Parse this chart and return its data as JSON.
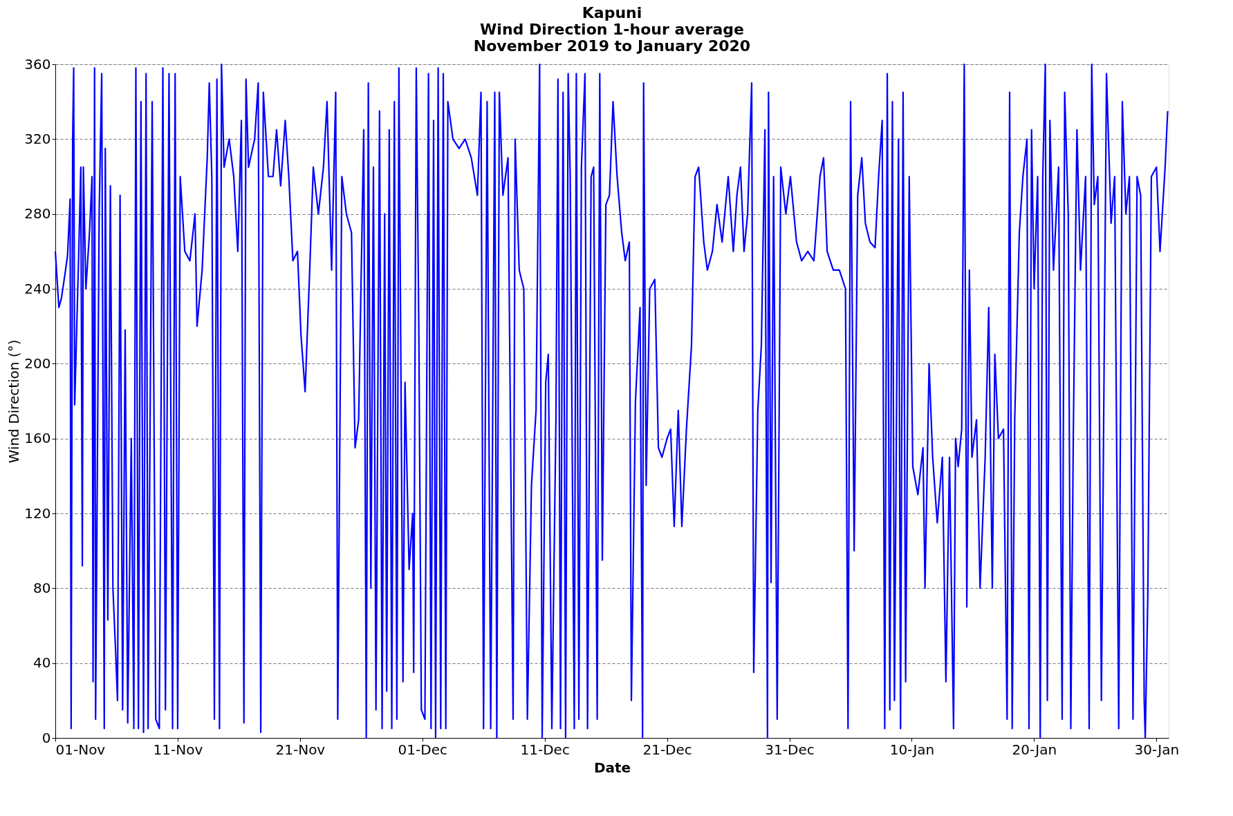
{
  "chart_data": {
    "type": "line",
    "title": "Kapuni",
    "subtitle": "Wind Direction 1-hour average\nNovember 2019 to January 2020",
    "xlabel": "Date",
    "ylabel": "Wind Direction  (°)",
    "xlim": [
      "2019-11-01T00:00",
      "2020-01-31T00:00"
    ],
    "xticks": [
      {
        "value": "2019-11-01",
        "label": "01-Nov"
      },
      {
        "value": "2019-11-11",
        "label": "11-Nov"
      },
      {
        "value": "2019-11-21",
        "label": "21-Nov"
      },
      {
        "value": "2019-12-01",
        "label": "01-Dec"
      },
      {
        "value": "2019-12-11",
        "label": "11-Dec"
      },
      {
        "value": "2019-12-21",
        "label": "21-Dec"
      },
      {
        "value": "2019-12-31",
        "label": "31-Dec"
      },
      {
        "value": "2020-01-10",
        "label": "10-Jan"
      },
      {
        "value": "2020-01-20",
        "label": "20-Jan"
      },
      {
        "value": "2020-01-30",
        "label": "30-Jan"
      }
    ],
    "ylim": [
      0,
      360
    ],
    "yticks": [
      0,
      40,
      80,
      120,
      160,
      200,
      240,
      280,
      320,
      360
    ],
    "grid": "y",
    "marker": "none",
    "line_style": "solid",
    "series": [
      {
        "color": "#0000ff",
        "x": [
          "2019-11-01T00:00",
          "2019-11-01T07:00",
          "2019-11-01T12:00",
          "2019-11-01T19:00",
          "2019-11-02T00:00",
          "2019-11-02T05:00",
          "2019-11-02T07:00",
          "2019-11-02T10:00",
          "2019-11-02T12:00",
          "2019-11-02T14:00",
          "2019-11-02T22:00",
          "2019-11-03T02:00",
          "2019-11-03T05:00",
          "2019-11-03T07:00",
          "2019-11-03T12:00",
          "2019-11-03T19:00",
          "2019-11-04T00:00",
          "2019-11-04T02:00",
          "2019-11-04T05:00",
          "2019-11-04T07:00",
          "2019-11-04T14:00",
          "2019-11-04T19:00",
          "2019-11-05T00:00",
          "2019-11-05T02:00",
          "2019-11-05T07:00",
          "2019-11-05T12:00",
          "2019-11-05T17:00",
          "2019-11-05T22:00",
          "2019-11-06T02:00",
          "2019-11-06T07:00",
          "2019-11-06T12:00",
          "2019-11-06T17:00",
          "2019-11-06T22:00",
          "2019-11-07T05:00",
          "2019-11-07T10:00",
          "2019-11-07T14:00",
          "2019-11-07T19:00",
          "2019-11-08T00:00",
          "2019-11-08T05:00",
          "2019-11-08T10:00",
          "2019-11-08T14:00",
          "2019-11-08T22:00",
          "2019-11-09T05:00",
          "2019-11-09T12:00",
          "2019-11-09T19:00",
          "2019-11-10T00:00",
          "2019-11-10T07:00",
          "2019-11-10T14:00",
          "2019-11-10T19:00",
          "2019-11-11T00:00",
          "2019-11-11T05:00",
          "2019-11-11T14:00",
          "2019-11-12T00:00",
          "2019-11-12T10:00",
          "2019-11-12T14:00",
          "2019-11-13T00:00",
          "2019-11-13T10:00",
          "2019-11-13T14:00",
          "2019-11-13T19:00",
          "2019-11-14T00:00",
          "2019-11-14T05:00",
          "2019-11-14T10:00",
          "2019-11-14T14:00",
          "2019-11-14T19:00",
          "2019-11-15T05:00",
          "2019-11-15T14:00",
          "2019-11-15T22:00",
          "2019-11-16T05:00",
          "2019-11-16T10:00",
          "2019-11-16T14:00",
          "2019-11-16T19:00",
          "2019-11-17T07:00",
          "2019-11-17T14:00",
          "2019-11-17T19:00",
          "2019-11-18T00:00",
          "2019-11-18T10:00",
          "2019-11-18T19:00",
          "2019-11-19T02:00",
          "2019-11-19T10:00",
          "2019-11-19T19:00",
          "2019-11-20T02:00",
          "2019-11-20T10:00",
          "2019-11-20T19:00",
          "2019-11-21T02:00",
          "2019-11-21T10:00",
          "2019-11-21T19:00",
          "2019-11-22T02:00",
          "2019-11-22T12:00",
          "2019-11-22T22:00",
          "2019-11-23T05:00",
          "2019-11-23T14:00",
          "2019-11-23T22:00",
          "2019-11-24T02:00",
          "2019-11-24T10:00",
          "2019-11-24T19:00",
          "2019-11-25T05:00",
          "2019-11-25T12:00",
          "2019-11-25T19:00",
          "2019-11-26T05:00",
          "2019-11-26T10:00",
          "2019-11-26T14:00",
          "2019-11-26T19:00",
          "2019-11-27T00:00",
          "2019-11-27T05:00",
          "2019-11-27T12:00",
          "2019-11-27T17:00",
          "2019-11-27T22:00",
          "2019-11-28T02:00",
          "2019-11-28T07:00",
          "2019-11-28T12:00",
          "2019-11-28T17:00",
          "2019-11-28T22:00",
          "2019-11-29T02:00",
          "2019-11-29T10:00",
          "2019-11-29T14:00",
          "2019-11-29T22:00",
          "2019-11-30T05:00",
          "2019-11-30T07:00",
          "2019-11-30T12:00",
          "2019-11-30T17:00",
          "2019-11-30T22:00",
          "2019-12-01T05:00",
          "2019-12-01T12:00",
          "2019-12-01T17:00",
          "2019-12-01T22:00",
          "2019-12-02T02:00",
          "2019-12-02T07:00",
          "2019-12-02T12:00",
          "2019-12-02T17:00",
          "2019-12-02T22:00",
          "2019-12-03T02:00",
          "2019-12-03T12:00",
          "2019-12-04T00:00",
          "2019-12-04T12:00",
          "2019-12-05T00:00",
          "2019-12-05T12:00",
          "2019-12-05T19:00",
          "2019-12-06T00:00",
          "2019-12-06T07:00",
          "2019-12-06T14:00",
          "2019-12-06T22:00",
          "2019-12-07T02:00",
          "2019-12-07T07:00",
          "2019-12-07T14:00",
          "2019-12-08T00:00",
          "2019-12-08T10:00",
          "2019-12-08T14:00",
          "2019-12-08T22:00",
          "2019-12-09T07:00",
          "2019-12-09T14:00",
          "2019-12-09T22:00",
          "2019-12-10T07:00",
          "2019-12-10T14:00",
          "2019-12-10T19:00",
          "2019-12-11T02:00",
          "2019-12-11T07:00",
          "2019-12-11T14:00",
          "2019-12-11T22:00",
          "2019-12-12T02:00",
          "2019-12-12T07:00",
          "2019-12-12T12:00",
          "2019-12-12T17:00",
          "2019-12-12T22:00",
          "2019-12-13T02:00",
          "2019-12-13T10:00",
          "2019-12-13T14:00",
          "2019-12-13T19:00",
          "2019-12-14T00:00",
          "2019-12-14T07:00",
          "2019-12-14T12:00",
          "2019-12-14T19:00",
          "2019-12-15T00:00",
          "2019-12-15T07:00",
          "2019-12-15T12:00",
          "2019-12-15T17:00",
          "2019-12-16T00:00",
          "2019-12-16T07:00",
          "2019-12-16T14:00",
          "2019-12-16T22:00",
          "2019-12-17T07:00",
          "2019-12-17T14:00",
          "2019-12-17T22:00",
          "2019-12-18T02:00",
          "2019-12-18T10:00",
          "2019-12-18T19:00",
          "2019-12-19T00:00",
          "2019-12-19T02:00",
          "2019-12-19T07:00",
          "2019-12-19T14:00",
          "2019-12-20T00:00",
          "2019-12-20T07:00",
          "2019-12-20T14:00",
          "2019-12-21T00:00",
          "2019-12-21T07:00",
          "2019-12-21T14:00",
          "2019-12-21T22:00",
          "2019-12-22T05:00",
          "2019-12-22T14:00",
          "2019-12-23T00:00",
          "2019-12-23T07:00",
          "2019-12-23T14:00",
          "2019-12-24T00:00",
          "2019-12-24T07:00",
          "2019-12-24T17:00",
          "2019-12-25T02:00",
          "2019-12-25T12:00",
          "2019-12-26T00:00",
          "2019-12-26T10:00",
          "2019-12-26T17:00",
          "2019-12-27T00:00",
          "2019-12-27T07:00",
          "2019-12-27T14:00",
          "2019-12-27T22:00",
          "2019-12-28T02:00",
          "2019-12-28T10:00",
          "2019-12-28T17:00",
          "2019-12-29T00:00",
          "2019-12-29T05:00",
          "2019-12-29T07:00",
          "2019-12-29T12:00",
          "2019-12-29T17:00",
          "2019-12-30T00:00",
          "2019-12-30T07:00",
          "2019-12-30T17:00",
          "2019-12-31T02:00",
          "2019-12-31T14:00",
          "2020-01-01T00:00",
          "2020-01-01T12:00",
          "2020-01-02T00:00",
          "2020-01-02T12:00",
          "2020-01-02T19:00",
          "2020-01-03T02:00",
          "2020-01-03T14:00",
          "2020-01-04T02:00",
          "2020-01-04T14:00",
          "2020-01-04T19:00",
          "2020-01-05T00:00",
          "2020-01-05T07:00",
          "2020-01-05T14:00",
          "2020-01-05T22:00",
          "2020-01-06T05:00",
          "2020-01-06T14:00",
          "2020-01-07T00:00",
          "2020-01-07T07:00",
          "2020-01-07T14:00",
          "2020-01-07T19:00",
          "2020-01-08T00:00",
          "2020-01-08T05:00",
          "2020-01-08T10:00",
          "2020-01-08T14:00",
          "2020-01-08T22:00",
          "2020-01-09T02:00",
          "2020-01-09T07:00",
          "2020-01-09T12:00",
          "2020-01-09T19:00",
          "2020-01-10T02:00",
          "2020-01-10T12:00",
          "2020-01-10T22:00",
          "2020-01-11T02:00",
          "2020-01-11T10:00",
          "2020-01-11T17:00",
          "2020-01-12T02:00",
          "2020-01-12T12:00",
          "2020-01-12T19:00",
          "2020-01-13T02:00",
          "2020-01-13T10:00",
          "2020-01-13T14:00",
          "2020-01-13T19:00",
          "2020-01-14T02:00",
          "2020-01-14T07:00",
          "2020-01-14T12:00",
          "2020-01-14T17:00",
          "2020-01-14T22:00",
          "2020-01-15T07:00",
          "2020-01-15T14:00",
          "2020-01-16T00:00",
          "2020-01-16T07:00",
          "2020-01-16T14:00",
          "2020-01-16T19:00",
          "2020-01-17T02:00",
          "2020-01-17T12:00",
          "2020-01-17T19:00",
          "2020-01-18T00:00",
          "2020-01-18T05:00",
          "2020-01-18T10:00",
          "2020-01-18T19:00",
          "2020-01-19T02:00",
          "2020-01-19T10:00",
          "2020-01-19T14:00",
          "2020-01-19T19:00",
          "2020-01-20T00:00",
          "2020-01-20T07:00",
          "2020-01-20T12:00",
          "2020-01-20T17:00",
          "2020-01-20T22:00",
          "2020-01-21T02:00",
          "2020-01-21T07:00",
          "2020-01-21T14:00",
          "2020-01-22T00:00",
          "2020-01-22T07:00",
          "2020-01-22T12:00",
          "2020-01-22T19:00",
          "2020-01-23T00:00",
          "2020-01-23T05:00",
          "2020-01-23T12:00",
          "2020-01-23T19:00",
          "2020-01-24T05:00",
          "2020-01-24T12:00",
          "2020-01-24T17:00",
          "2020-01-24T22:00",
          "2020-01-25T05:00",
          "2020-01-25T12:00",
          "2020-01-25T22:00",
          "2020-01-26T07:00",
          "2020-01-26T14:00",
          "2020-01-26T22:00",
          "2020-01-27T05:00",
          "2020-01-27T12:00",
          "2020-01-27T19:00",
          "2020-01-28T02:00",
          "2020-01-28T10:00",
          "2020-01-28T17:00",
          "2020-01-29T00:00",
          "2020-01-29T02:00",
          "2020-01-29T07:00",
          "2020-01-29T14:00",
          "2020-01-30T00:00",
          "2020-01-30T07:00",
          "2020-01-30T17:00",
          "2020-01-30T22:00"
        ],
        "values": [
          260,
          230,
          235,
          248,
          258,
          288,
          5,
          320,
          358,
          178,
          260,
          305,
          92,
          305,
          240,
          270,
          300,
          30,
          358,
          10,
          280,
          355,
          5,
          315,
          63,
          295,
          80,
          48,
          20,
          290,
          15,
          218,
          8,
          160,
          5,
          358,
          5,
          340,
          3,
          355,
          5,
          340,
          10,
          5,
          358,
          15,
          355,
          5,
          355,
          5,
          300,
          260,
          255,
          280,
          220,
          250,
          310,
          350,
          300,
          10,
          352,
          5,
          360,
          305,
          320,
          300,
          260,
          330,
          8,
          352,
          305,
          320,
          350,
          3,
          345,
          300,
          300,
          325,
          295,
          330,
          300,
          255,
          260,
          215,
          185,
          250,
          305,
          280,
          305,
          340,
          250,
          345,
          10,
          300,
          280,
          270,
          155,
          170,
          325,
          0,
          350,
          80,
          305,
          15,
          335,
          5,
          280,
          25,
          325,
          5,
          340,
          10,
          358,
          30,
          190,
          90,
          120,
          35,
          358,
          220,
          15,
          10,
          355,
          5,
          330,
          0,
          358,
          5,
          355,
          5,
          340,
          320,
          315,
          320,
          310,
          290,
          345,
          5,
          340,
          5,
          345,
          0,
          345,
          290,
          310,
          10,
          320,
          250,
          240,
          10,
          135,
          175,
          360,
          0,
          190,
          205,
          5,
          170,
          352,
          5,
          345,
          0,
          355,
          300,
          5,
          355,
          10,
          305,
          355,
          5,
          300,
          305,
          10,
          355,
          95,
          285,
          290,
          340,
          300,
          270,
          255,
          265,
          20,
          180,
          230,
          0,
          350,
          135,
          240,
          245,
          155,
          150,
          160,
          165,
          113,
          175,
          113,
          165,
          210,
          300,
          305,
          265,
          250,
          260,
          285,
          265,
          300,
          260,
          290,
          305,
          260,
          280,
          350,
          35,
          175,
          210,
          325,
          0,
          345,
          83,
          300,
          10,
          305,
          280,
          300,
          265,
          255,
          260,
          255,
          300,
          310,
          260,
          250,
          250,
          240,
          5,
          340,
          100,
          290,
          310,
          275,
          265,
          262,
          300,
          330,
          5,
          355,
          15,
          340,
          20,
          320,
          5,
          345,
          30,
          300,
          145,
          130,
          155,
          80,
          200,
          150,
          115,
          150,
          30,
          150,
          5,
          160,
          145,
          165,
          360,
          70,
          250,
          150,
          170,
          80,
          150,
          230,
          80,
          205,
          160,
          165,
          10,
          345,
          5,
          170,
          270,
          300,
          320,
          5,
          325,
          240,
          300,
          0,
          300,
          360,
          20,
          330,
          250,
          305,
          10,
          345,
          280,
          5,
          165,
          325,
          250,
          300,
          5,
          360,
          285,
          300,
          20,
          355,
          275,
          300,
          5,
          340,
          280,
          300,
          10,
          300,
          290,
          20,
          0,
          75,
          300,
          305,
          260,
          305,
          335
        ]
      }
    ]
  }
}
